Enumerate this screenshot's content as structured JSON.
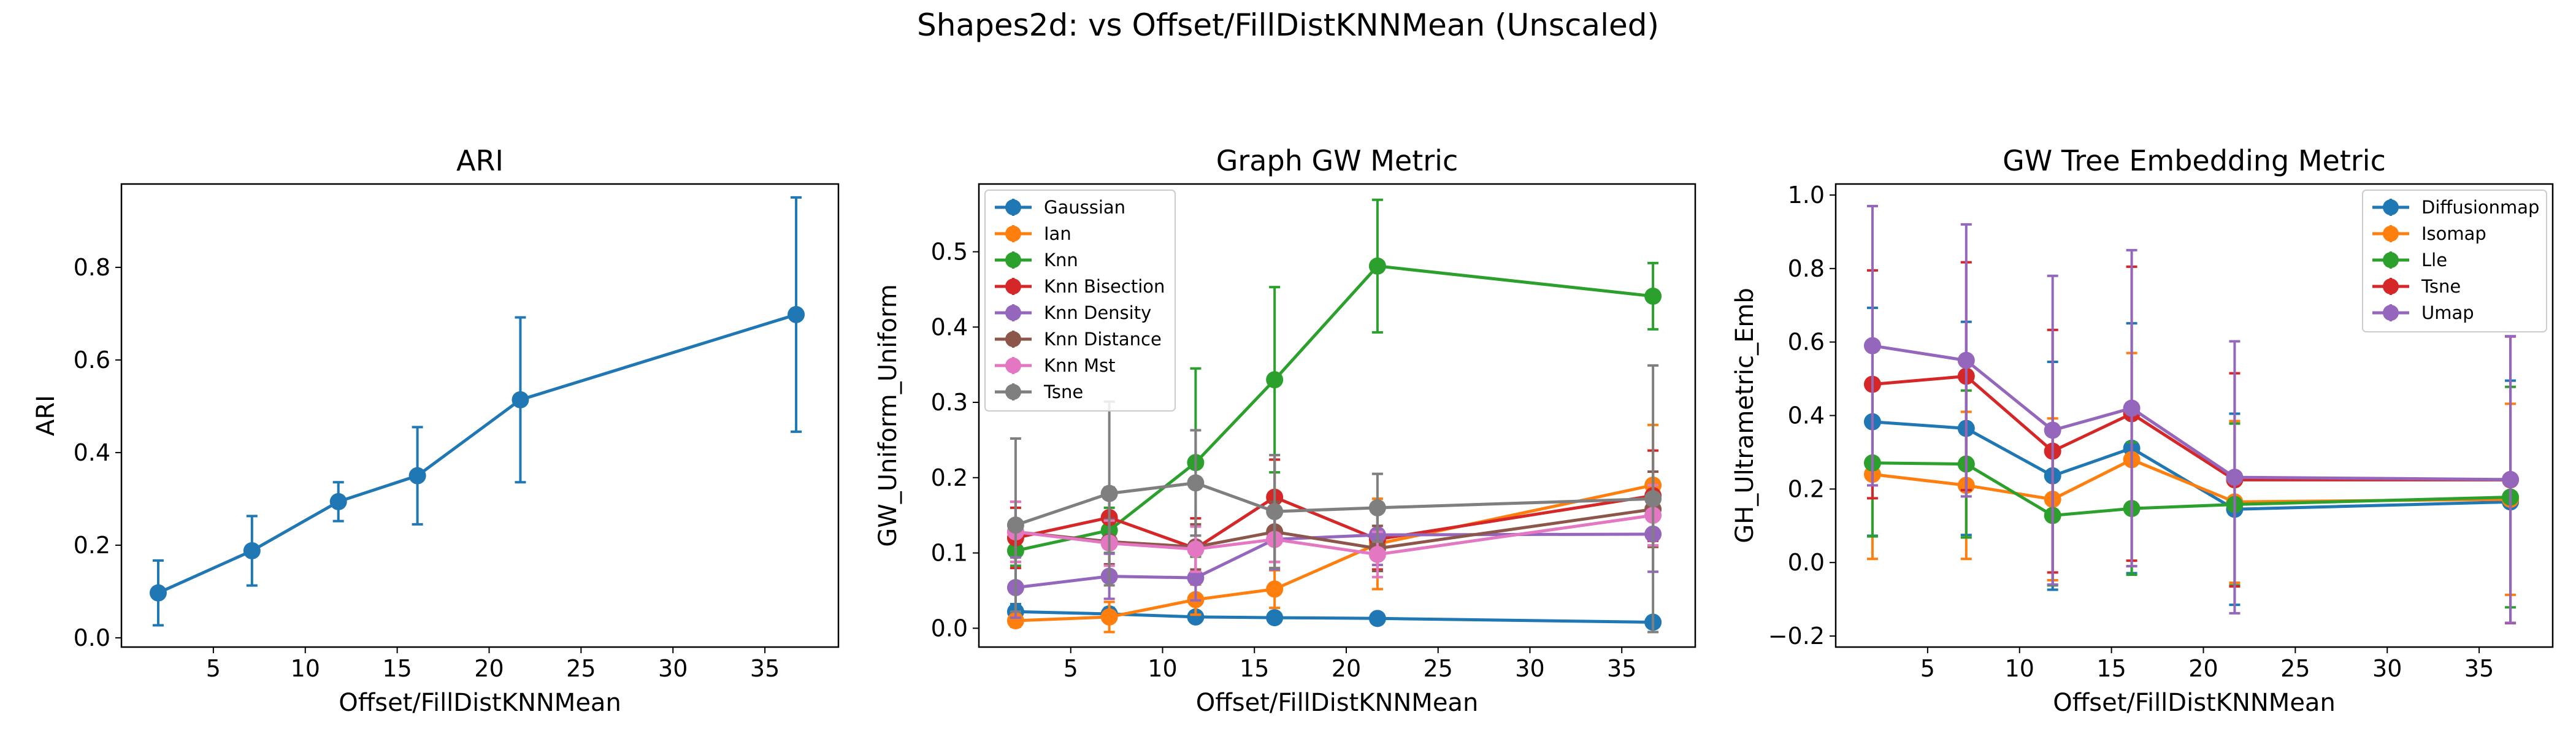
{
  "figure": {
    "title": "Shapes2d: vs Offset/FillDistKNNMean (Unscaled)"
  },
  "chart_data": [
    {
      "type": "line",
      "title": "ARI",
      "xlabel": "Offset/FillDistKNNMean",
      "ylabel": "ARI",
      "xlim": [
        0,
        39
      ],
      "ylim": [
        -0.02,
        0.98
      ],
      "xticks": [
        5,
        10,
        15,
        20,
        25,
        30,
        35
      ],
      "yticks": [
        0.0,
        0.2,
        0.4,
        0.6,
        0.8
      ],
      "ytick_decimals": 1,
      "grid": false,
      "legend": "none",
      "x": [
        2.0,
        7.1,
        11.8,
        16.1,
        21.7,
        36.7
      ],
      "series": [
        {
          "color": "#1f77b4",
          "values": [
            0.097,
            0.188,
            0.294,
            0.35,
            0.514,
            0.698
          ],
          "err": [
            0.07,
            0.075,
            0.042,
            0.105,
            0.178,
            0.253
          ]
        }
      ]
    },
    {
      "type": "line",
      "title": "Graph GW Metric",
      "xlabel": "Offset/FillDistKNNMean",
      "ylabel": "GW_Uniform_Uniform",
      "xlim": [
        0,
        39
      ],
      "ylim": [
        -0.025,
        0.59
      ],
      "xticks": [
        5,
        10,
        15,
        20,
        25,
        30,
        35
      ],
      "yticks": [
        0.0,
        0.1,
        0.2,
        0.3,
        0.4,
        0.5
      ],
      "ytick_decimals": 1,
      "grid": false,
      "legend": "upper-left",
      "x": [
        2.0,
        7.1,
        11.8,
        16.1,
        21.7,
        36.7
      ],
      "series": [
        {
          "name": "Gaussian",
          "color": "#1f77b4",
          "values": [
            0.022,
            0.019,
            0.015,
            0.014,
            0.013,
            0.008
          ],
          "err": [
            0.01,
            0.008,
            0.006,
            0.006,
            0.005,
            0.004
          ]
        },
        {
          "name": "Ian",
          "color": "#ff7f0e",
          "values": [
            0.01,
            0.015,
            0.038,
            0.052,
            0.112,
            0.19
          ],
          "err": [
            0.008,
            0.02,
            0.02,
            0.025,
            0.06,
            0.08
          ]
        },
        {
          "name": "Knn",
          "color": "#2ca02c",
          "values": [
            0.103,
            0.13,
            0.22,
            0.33,
            0.481,
            0.441
          ],
          "err": [
            0.02,
            0.03,
            0.125,
            0.123,
            0.088,
            0.044
          ]
        },
        {
          "name": "Knn Bisection",
          "color": "#d62728",
          "values": [
            0.12,
            0.147,
            0.106,
            0.174,
            0.118,
            0.176
          ],
          "err": [
            0.04,
            0.04,
            0.04,
            0.05,
            0.04,
            0.06
          ]
        },
        {
          "name": "Knn Density",
          "color": "#9467bd",
          "values": [
            0.054,
            0.069,
            0.067,
            0.118,
            0.124,
            0.125
          ],
          "err": [
            0.04,
            0.03,
            0.03,
            0.04,
            0.04,
            0.05
          ]
        },
        {
          "name": "Knn Distance",
          "color": "#8c564b",
          "values": [
            0.128,
            0.115,
            0.108,
            0.128,
            0.106,
            0.158
          ],
          "err": [
            0.04,
            0.03,
            0.03,
            0.04,
            0.03,
            0.05
          ]
        },
        {
          "name": "Knn Mst",
          "color": "#e377c2",
          "values": [
            0.128,
            0.113,
            0.105,
            0.118,
            0.098,
            0.15
          ],
          "err": [
            0.04,
            0.03,
            0.03,
            0.03,
            0.03,
            0.04
          ]
        },
        {
          "name": "Tsne",
          "color": "#7f7f7f",
          "values": [
            0.137,
            0.179,
            0.193,
            0.155,
            0.16,
            0.172
          ],
          "err": [
            0.115,
            0.122,
            0.07,
            0.075,
            0.045,
            0.177
          ]
        }
      ]
    },
    {
      "type": "line",
      "title": "GW Tree Embedding Metric",
      "xlabel": "Offset/FillDistKNNMean",
      "ylabel": "GH_Ultrametric_Emb",
      "xlim": [
        0,
        39
      ],
      "ylim": [
        -0.23,
        1.03
      ],
      "xticks": [
        5,
        10,
        15,
        20,
        25,
        30,
        35
      ],
      "yticks": [
        -0.2,
        0.0,
        0.2,
        0.4,
        0.6,
        0.8,
        1.0
      ],
      "ytick_decimals": 1,
      "grid": false,
      "legend": "upper-right",
      "x": [
        2.0,
        7.1,
        11.8,
        16.1,
        21.7,
        36.7
      ],
      "series": [
        {
          "name": "Diffusionmap",
          "color": "#1f77b4",
          "values": [
            0.383,
            0.365,
            0.236,
            0.311,
            0.145,
            0.165
          ],
          "err": [
            0.31,
            0.29,
            0.31,
            0.34,
            0.26,
            0.33
          ]
        },
        {
          "name": "Isomap",
          "color": "#ff7f0e",
          "values": [
            0.24,
            0.21,
            0.172,
            0.28,
            0.165,
            0.172
          ],
          "err": [
            0.23,
            0.2,
            0.22,
            0.29,
            0.22,
            0.26
          ]
        },
        {
          "name": "Lle",
          "color": "#2ca02c",
          "values": [
            0.271,
            0.268,
            0.128,
            0.147,
            0.158,
            0.178
          ],
          "err": [
            0.2,
            0.2,
            0.19,
            0.18,
            0.22,
            0.3
          ]
        },
        {
          "name": "Tsne",
          "color": "#d62728",
          "values": [
            0.485,
            0.507,
            0.303,
            0.405,
            0.225,
            0.225
          ],
          "err": [
            0.31,
            0.31,
            0.33,
            0.4,
            0.29,
            0.39
          ]
        },
        {
          "name": "Umap",
          "color": "#9467bd",
          "values": [
            0.59,
            0.55,
            0.36,
            0.42,
            0.232,
            0.226
          ],
          "err": [
            0.38,
            0.37,
            0.42,
            0.43,
            0.37,
            0.39
          ]
        }
      ]
    }
  ]
}
